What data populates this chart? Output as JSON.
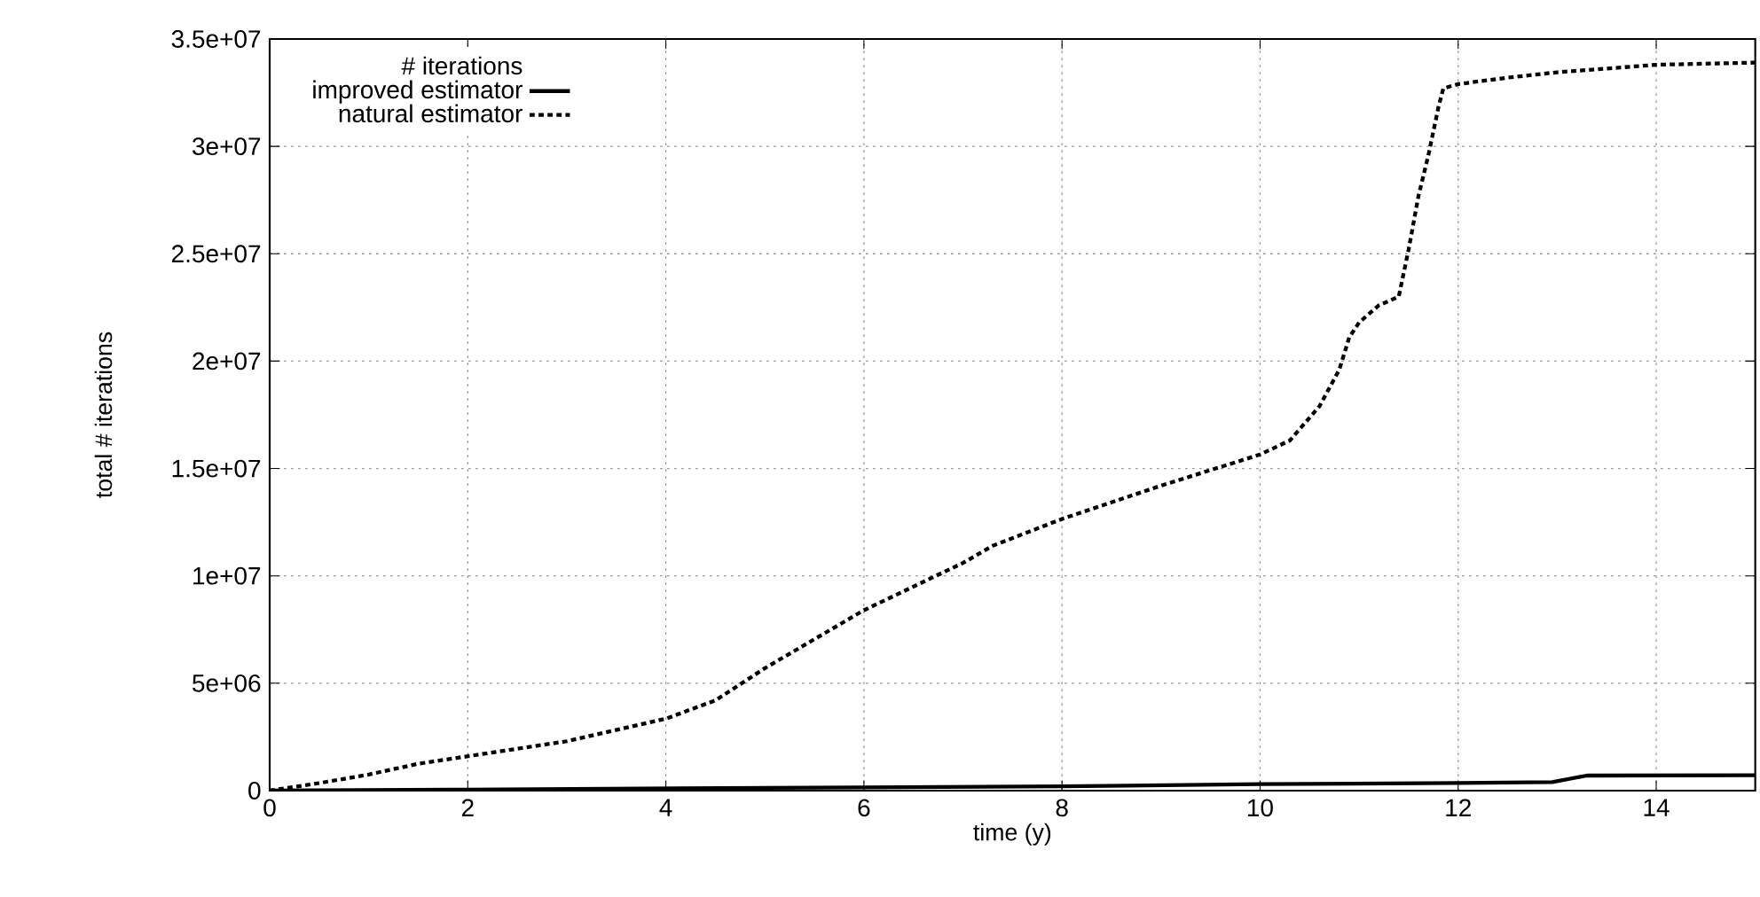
{
  "chart_data": {
    "type": "line",
    "xlabel": "time (y)",
    "ylabel": "total # iterations",
    "legend_title": "# iterations",
    "legend": "top left",
    "grid": true,
    "xlim": [
      0,
      15
    ],
    "xticks": [
      0,
      2,
      4,
      6,
      8,
      10,
      12,
      14
    ],
    "ylim": [
      0,
      35000000
    ],
    "yticks": [
      0,
      {
        "value": 5000000,
        "label": "5e+06"
      },
      {
        "value": 10000000,
        "label": "1e+07"
      },
      {
        "value": 15000000,
        "label": "1.5e+07"
      },
      {
        "value": 20000000,
        "label": "2e+07"
      },
      {
        "value": 25000000,
        "label": "2.5e+07"
      },
      {
        "value": 30000000,
        "label": "3e+07"
      },
      {
        "value": 35000000,
        "label": "3.5e+07"
      }
    ],
    "series": [
      {
        "name": "improved estimator",
        "color": "#000000",
        "line_style": "solid",
        "x": [
          0,
          2,
          4,
          6,
          8,
          10,
          12,
          12.95,
          13.3,
          15
        ],
        "values": [
          0,
          50000,
          100000,
          150000,
          200000,
          300000,
          350000,
          400000,
          700000,
          720000
        ]
      },
      {
        "name": "natural estimator",
        "color": "#000000",
        "line_style": "dotted",
        "x": [
          0,
          0.5,
          1,
          1.5,
          2,
          3,
          4,
          4.5,
          5,
          6,
          7,
          7.3,
          8,
          9,
          10,
          10.3,
          10.6,
          10.8,
          10.9,
          11,
          11.2,
          11.4,
          11.5,
          11.6,
          11.7,
          11.8,
          11.85,
          12,
          12.5,
          13,
          14,
          15
        ],
        "values": [
          0,
          350000,
          750000,
          1250000,
          1600000,
          2300000,
          3350000,
          4200000,
          5700000,
          8400000,
          10600000,
          11400000,
          12650000,
          14200000,
          15650000,
          16300000,
          17900000,
          19600000,
          21100000,
          21800000,
          22600000,
          23000000,
          25200000,
          27700000,
          29600000,
          31800000,
          32700000,
          32900000,
          33200000,
          33450000,
          33800000,
          33900000
        ]
      }
    ]
  }
}
